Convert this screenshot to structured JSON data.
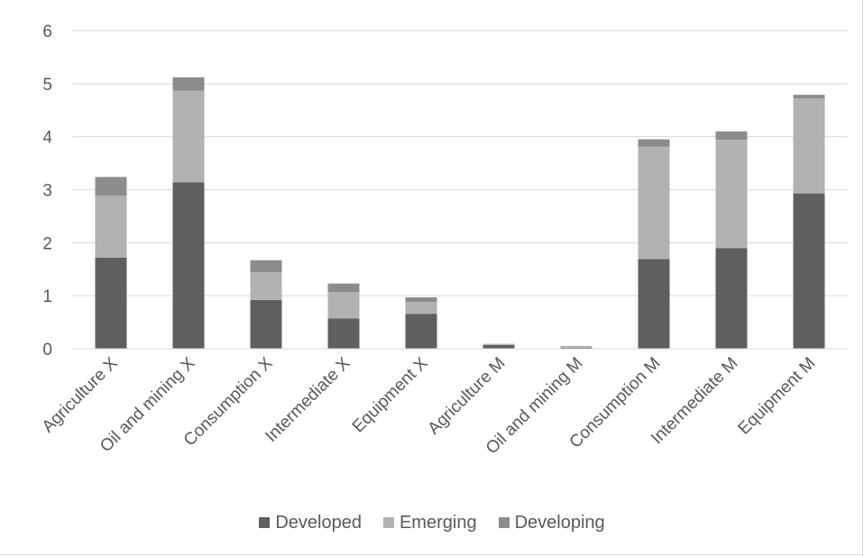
{
  "chart_data": {
    "type": "bar",
    "stacked": true,
    "title": "",
    "xlabel": "",
    "ylabel": "",
    "ylim": [
      0,
      6
    ],
    "yticks": [
      0,
      1,
      2,
      3,
      4,
      5,
      6
    ],
    "grid": true,
    "legend_position": "bottom",
    "categories": [
      "Agriculture X",
      "Oil and mining X",
      "Consumption X",
      "Intermediate X",
      "Equipment X",
      "Agriculture M",
      "Oil and mining M",
      "Consumption M",
      "Intermediate M",
      "Equipment M"
    ],
    "series": [
      {
        "name": "Developed",
        "color": "#5f5f5f",
        "values": [
          1.72,
          3.14,
          0.92,
          0.57,
          0.66,
          0.07,
          0.02,
          1.69,
          1.9,
          2.93
        ]
      },
      {
        "name": "Emerging",
        "color": "#b2b2b2",
        "values": [
          1.17,
          1.73,
          0.52,
          0.5,
          0.22,
          0.01,
          0.02,
          2.12,
          2.04,
          1.79
        ]
      },
      {
        "name": "Developing",
        "color": "#8c8c8c",
        "values": [
          0.35,
          0.25,
          0.23,
          0.16,
          0.09,
          0.01,
          0.01,
          0.14,
          0.16,
          0.07
        ]
      }
    ]
  }
}
